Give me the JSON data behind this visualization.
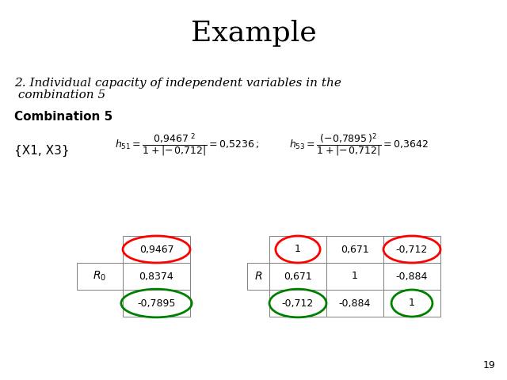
{
  "title": "Example",
  "subtitle_line1": "2. Individual capacity of independent variables in the",
  "subtitle_line2": " combination 5",
  "combination_label": "Combination 5",
  "set_label": "{X1, X3}",
  "R0_values": [
    "0,9467",
    "0,8374",
    "-0,7895"
  ],
  "R_matrix": [
    [
      "1",
      "0,671",
      "-0,712"
    ],
    [
      "0,671",
      "1",
      "-0,884"
    ],
    [
      "-0,712",
      "-0,884",
      "1"
    ]
  ],
  "page_number": "19",
  "bg_color": "#ffffff",
  "title_fontsize": 26,
  "subtitle_fontsize": 11,
  "combo_fontsize": 11,
  "set_fontsize": 11,
  "table_fontsize": 9,
  "formula_fontsize": 9
}
